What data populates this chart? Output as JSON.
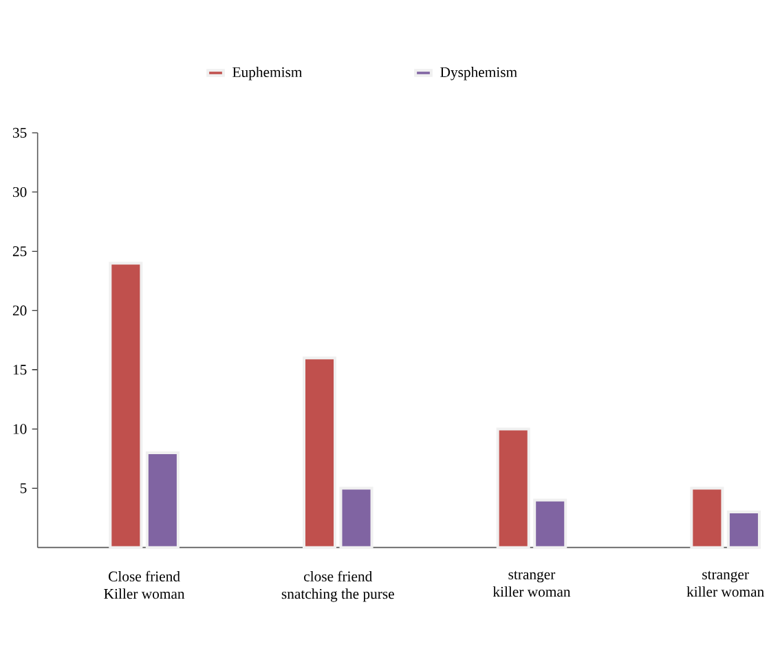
{
  "chart_data": {
    "type": "bar",
    "categories": [
      "Close friend\nKiller woman",
      "close friend\nsnatching the purse",
      "stranger\nkiller woman",
      "stranger\nkiller woman"
    ],
    "series": [
      {
        "name": "Euphemism",
        "color": "#c0504d",
        "values": [
          24,
          16,
          10,
          5
        ]
      },
      {
        "name": "Dysphemism",
        "color": "#8064a2",
        "values": [
          8,
          5,
          4,
          3
        ]
      }
    ],
    "ylim": [
      0,
      35
    ],
    "yticks": [
      5,
      10,
      15,
      20,
      25,
      30,
      35
    ],
    "legend": "top",
    "grid": false
  }
}
